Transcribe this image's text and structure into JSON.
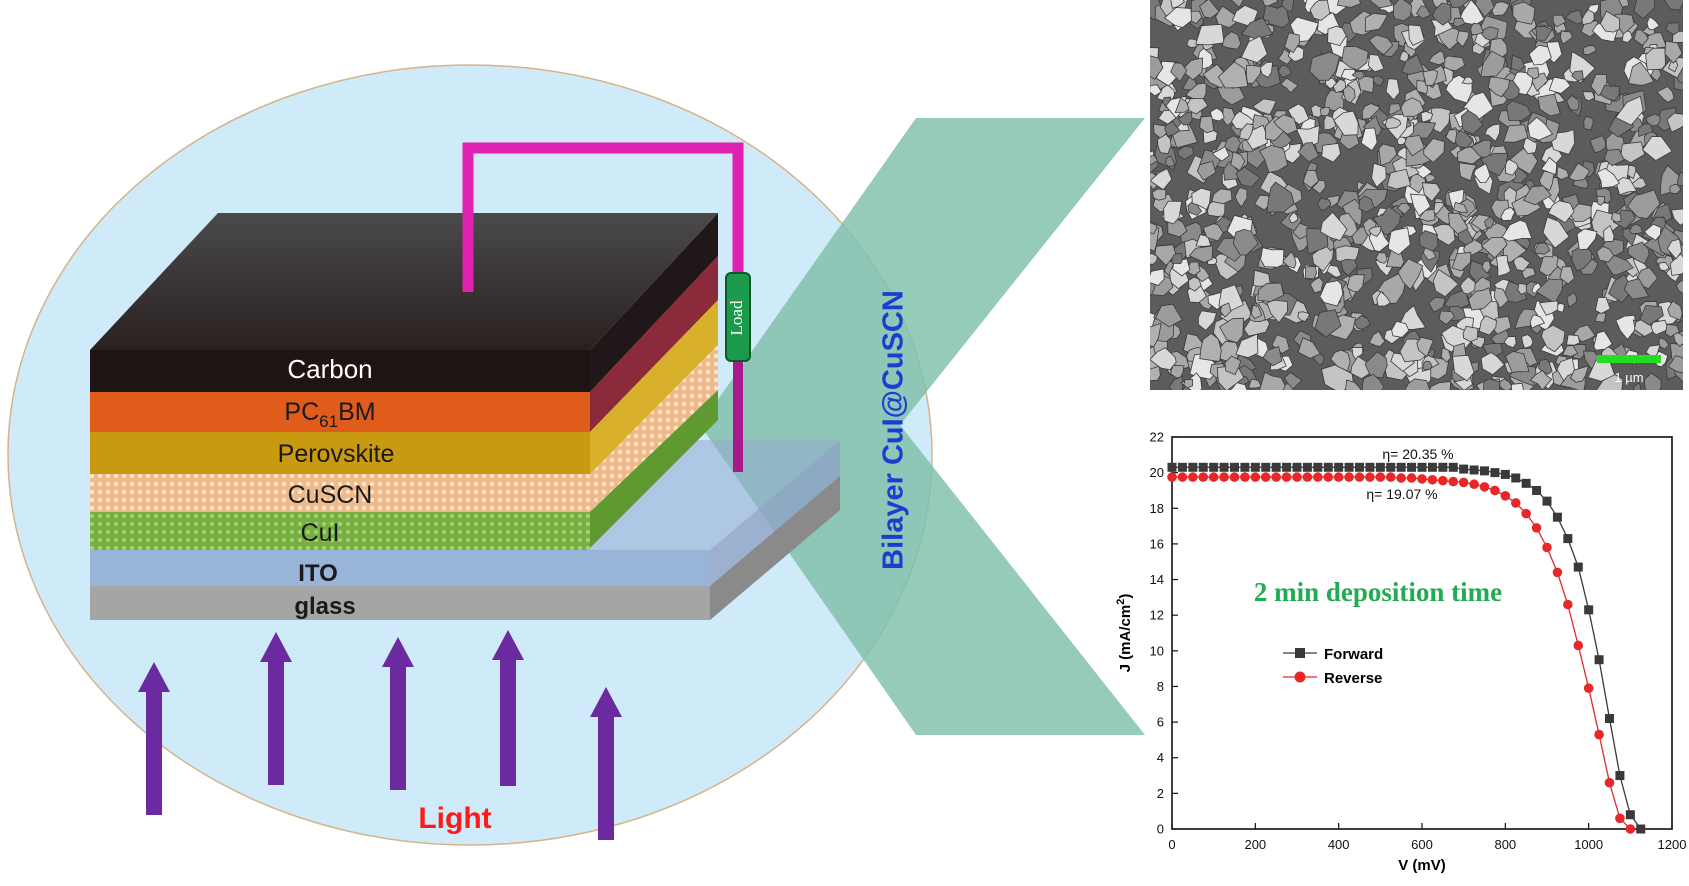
{
  "device": {
    "layers": [
      {
        "key": "carbon",
        "label": "Carbon",
        "color": "#1e1414"
      },
      {
        "key": "pcbm",
        "label": "PC61BM",
        "label_main": "PC",
        "label_sub": "61",
        "label_tail": "BM",
        "color": "#e05c1a"
      },
      {
        "key": "perovskite",
        "label": "Perovskite",
        "color": "#c89a12"
      },
      {
        "key": "cuscn",
        "label": "CuSCN",
        "color": "#f2c59c"
      },
      {
        "key": "cui",
        "label": "CuI",
        "color": "#7fb74a"
      },
      {
        "key": "ito",
        "label": "ITO",
        "color": "#98b4d8"
      },
      {
        "key": "glass",
        "label": "glass",
        "color": "#a5a5a5"
      }
    ],
    "load_label": "Load",
    "light_label": "Light",
    "bilayer_label": "Bilayer CuI@CuSCN",
    "colors": {
      "circle": "#cfeaf8",
      "wire": "#e020b0",
      "arrow": "#6b2aa0",
      "band": "#7fbfaa",
      "light": "#ff1a1a",
      "bilayer": "#1a3fd0",
      "load": "#1a9a4a"
    }
  },
  "sem": {
    "scale_bar_label": "1 µm"
  },
  "chart_data": {
    "type": "line",
    "xlabel": "V (mV)",
    "ylabel": "J (mA/cm2)",
    "ylabel_main": "J (mA/cm",
    "ylabel_sup": "2",
    "ylabel_tail": ")",
    "xlim": [
      0,
      1200
    ],
    "ylim": [
      0,
      22
    ],
    "xticks": [
      0,
      200,
      400,
      600,
      800,
      1000,
      1200
    ],
    "yticks": [
      0,
      2,
      4,
      6,
      8,
      10,
      12,
      14,
      16,
      18,
      20,
      22
    ],
    "grid": false,
    "legend_position": "middle-left",
    "annotations": [
      "η= 20.35 %",
      "η= 19.07 %",
      "2 min deposition time"
    ],
    "series": [
      {
        "name": "Forward",
        "color": "#3a3a3a",
        "marker": "square",
        "x": [
          0,
          25,
          50,
          75,
          100,
          125,
          150,
          175,
          200,
          225,
          250,
          275,
          300,
          325,
          350,
          375,
          400,
          425,
          450,
          475,
          500,
          525,
          550,
          575,
          600,
          625,
          650,
          675,
          700,
          725,
          750,
          775,
          800,
          825,
          850,
          875,
          900,
          925,
          950,
          975,
          1000,
          1025,
          1050,
          1075,
          1100,
          1125
        ],
        "y": [
          20.3,
          20.3,
          20.3,
          20.3,
          20.3,
          20.3,
          20.3,
          20.3,
          20.3,
          20.3,
          20.3,
          20.3,
          20.3,
          20.3,
          20.3,
          20.3,
          20.3,
          20.3,
          20.3,
          20.3,
          20.3,
          20.3,
          20.3,
          20.3,
          20.3,
          20.3,
          20.3,
          20.3,
          20.2,
          20.15,
          20.1,
          20.0,
          19.9,
          19.7,
          19.4,
          19.0,
          18.4,
          17.5,
          16.3,
          14.7,
          12.3,
          9.5,
          6.2,
          3.0,
          0.8,
          0
        ]
      },
      {
        "name": "Reverse",
        "color": "#e82828",
        "marker": "circle",
        "x": [
          0,
          25,
          50,
          75,
          100,
          125,
          150,
          175,
          200,
          225,
          250,
          275,
          300,
          325,
          350,
          375,
          400,
          425,
          450,
          475,
          500,
          525,
          550,
          575,
          600,
          625,
          650,
          675,
          700,
          725,
          750,
          775,
          800,
          825,
          850,
          875,
          900,
          925,
          950,
          975,
          1000,
          1025,
          1050,
          1075,
          1100
        ],
        "y": [
          19.75,
          19.75,
          19.75,
          19.75,
          19.75,
          19.75,
          19.75,
          19.75,
          19.75,
          19.75,
          19.75,
          19.75,
          19.75,
          19.75,
          19.75,
          19.75,
          19.75,
          19.75,
          19.75,
          19.75,
          19.75,
          19.75,
          19.7,
          19.7,
          19.65,
          19.6,
          19.55,
          19.5,
          19.45,
          19.35,
          19.2,
          19.0,
          18.7,
          18.3,
          17.7,
          16.9,
          15.8,
          14.4,
          12.6,
          10.3,
          7.9,
          5.3,
          2.6,
          0.6,
          0
        ]
      }
    ]
  }
}
